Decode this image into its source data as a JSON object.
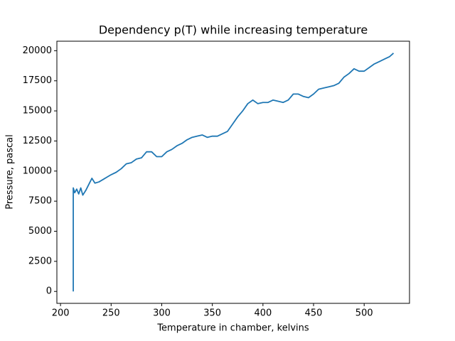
{
  "chart_data": {
    "type": "line",
    "title": "Dependency p(T) while increasing temperature",
    "x_label": "Temperature in chamber, kelvins",
    "y_label": "Pressure, pascal",
    "color": "#1f77b4",
    "x": [
      212.6,
      212.6,
      214,
      216,
      218,
      220,
      222,
      225,
      228,
      231,
      234,
      238,
      242,
      246,
      250,
      255,
      260,
      265,
      270,
      275,
      280,
      285,
      290,
      295,
      300,
      305,
      310,
      315,
      320,
      325,
      330,
      335,
      340,
      345,
      350,
      355,
      360,
      365,
      370,
      375,
      380,
      385,
      390,
      395,
      400,
      405,
      410,
      415,
      420,
      425,
      430,
      435,
      440,
      445,
      450,
      455,
      460,
      465,
      470,
      475,
      480,
      485,
      490,
      495,
      500,
      505,
      510,
      515,
      520,
      525,
      529
    ],
    "values": [
      0,
      8600,
      8200,
      8500,
      8100,
      8600,
      8000,
      8400,
      8900,
      9400,
      9000,
      9100,
      9300,
      9500,
      9700,
      9900,
      10200,
      10600,
      10700,
      11000,
      11100,
      11600,
      11600,
      11200,
      11200,
      11600,
      11800,
      12100,
      12300,
      12600,
      12800,
      12900,
      13000,
      12800,
      12900,
      12900,
      13100,
      13300,
      13900,
      14500,
      15000,
      15600,
      15900,
      15600,
      15700,
      15700,
      15900,
      15800,
      15700,
      15900,
      16400,
      16400,
      16200,
      16100,
      16400,
      16800,
      16900,
      17000,
      17100,
      17300,
      17800,
      18100,
      18500,
      18300,
      18300,
      18600,
      18900,
      19100,
      19300,
      19500,
      19800
    ],
    "xlim": [
      196.4,
      544.8
    ],
    "ylim": [
      -990,
      20790
    ],
    "xticks": [
      200,
      250,
      300,
      350,
      400,
      450,
      500
    ],
    "yticks": [
      0,
      2500,
      5000,
      7500,
      10000,
      12500,
      15000,
      17500,
      20000
    ],
    "grid": false
  }
}
